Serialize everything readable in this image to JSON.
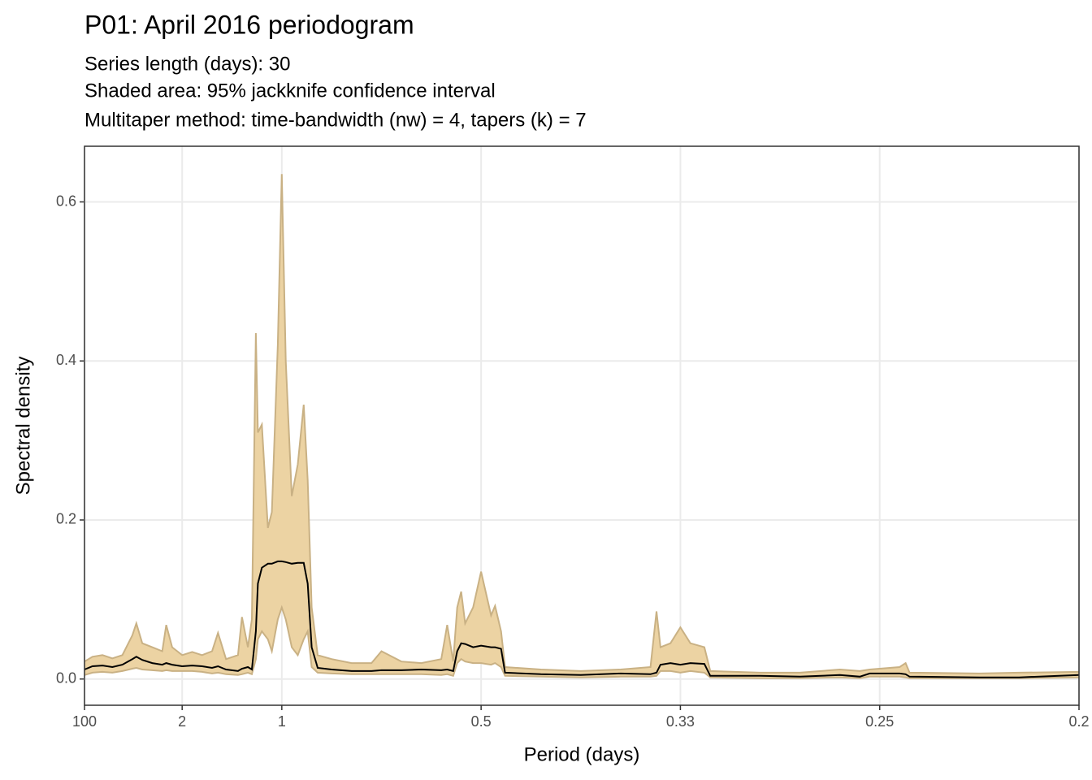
{
  "chart_data": {
    "type": "line",
    "title": "P01: April 2016 periodogram",
    "subtitle": [
      "Series length (days): 30",
      "Shaded area: 95% jackknife confidence interval",
      "Multitaper method: time-bandwidth (nw) = 4, tapers (k) = 7"
    ],
    "xlabel": "Period (days)",
    "ylabel": "Spectral density",
    "xlim": [
      0.01,
      5
    ],
    "ylim": [
      -0.033,
      0.67
    ],
    "xticks": [
      {
        "value": 0.01,
        "label": "100"
      },
      {
        "value": 0.5,
        "label": "2"
      },
      1,
      {
        "value": 2,
        "label": "0.5"
      },
      {
        "value": 3,
        "label": "0.33"
      },
      {
        "value": 4,
        "label": "0.25"
      },
      {
        "value": 5,
        "label": "0.2"
      }
    ],
    "yticks": [
      {
        "value": 0,
        "label": "0.0"
      },
      0.2,
      0.4,
      0.6
    ],
    "grid": true,
    "x": [
      0.01,
      0.05,
      0.1,
      0.15,
      0.2,
      0.25,
      0.27,
      0.3,
      0.35,
      0.4,
      0.42,
      0.45,
      0.5,
      0.55,
      0.6,
      0.65,
      0.68,
      0.72,
      0.78,
      0.8,
      0.83,
      0.85,
      0.87,
      0.88,
      0.9,
      0.93,
      0.95,
      0.98,
      1.0,
      1.02,
      1.05,
      1.08,
      1.11,
      1.13,
      1.15,
      1.18,
      1.25,
      1.35,
      1.45,
      1.5,
      1.6,
      1.7,
      1.8,
      1.83,
      1.86,
      1.88,
      1.9,
      1.92,
      1.96,
      2.0,
      2.05,
      2.07,
      2.1,
      2.12,
      2.3,
      2.5,
      2.7,
      2.85,
      2.88,
      2.9,
      2.95,
      3.0,
      3.05,
      3.12,
      3.15,
      3.4,
      3.6,
      3.8,
      3.9,
      3.95,
      4.1,
      4.13,
      4.15,
      4.5,
      4.7,
      5.0
    ],
    "values": [
      0.012,
      0.016,
      0.017,
      0.015,
      0.018,
      0.025,
      0.028,
      0.024,
      0.02,
      0.018,
      0.02,
      0.018,
      0.016,
      0.017,
      0.016,
      0.014,
      0.016,
      0.012,
      0.01,
      0.013,
      0.015,
      0.012,
      0.06,
      0.12,
      0.14,
      0.145,
      0.145,
      0.148,
      0.148,
      0.147,
      0.145,
      0.146,
      0.146,
      0.12,
      0.04,
      0.014,
      0.012,
      0.01,
      0.01,
      0.011,
      0.011,
      0.012,
      0.011,
      0.012,
      0.01,
      0.035,
      0.045,
      0.044,
      0.04,
      0.042,
      0.04,
      0.04,
      0.038,
      0.008,
      0.006,
      0.005,
      0.007,
      0.006,
      0.008,
      0.018,
      0.02,
      0.018,
      0.02,
      0.019,
      0.004,
      0.004,
      0.003,
      0.005,
      0.003,
      0.007,
      0.007,
      0.006,
      0.003,
      0.002,
      0.002,
      0.005
    ],
    "color": "#000000",
    "band": {
      "color": "#ecd3a3",
      "edge_color": "#c9b184",
      "lower": [
        0.005,
        0.008,
        0.009,
        0.008,
        0.01,
        0.013,
        0.014,
        0.012,
        0.011,
        0.01,
        0.011,
        0.01,
        0.01,
        0.01,
        0.009,
        0.007,
        0.008,
        0.006,
        0.005,
        0.006,
        0.008,
        0.006,
        0.025,
        0.05,
        0.06,
        0.05,
        0.035,
        0.075,
        0.09,
        0.075,
        0.04,
        0.03,
        0.05,
        0.06,
        0.015,
        0.008,
        0.007,
        0.006,
        0.006,
        0.006,
        0.006,
        0.006,
        0.005,
        0.006,
        0.004,
        0.02,
        0.025,
        0.022,
        0.02,
        0.02,
        0.018,
        0.02,
        0.015,
        0.004,
        0.003,
        0.002,
        0.003,
        0.003,
        0.004,
        0.01,
        0.01,
        0.008,
        0.01,
        0.008,
        0.002,
        0.001,
        0.001,
        0.002,
        0.001,
        0.003,
        0.003,
        0.002,
        0.001,
        0.001,
        0.001,
        0.002
      ],
      "upper": [
        0.022,
        0.028,
        0.03,
        0.026,
        0.03,
        0.055,
        0.07,
        0.045,
        0.04,
        0.035,
        0.068,
        0.04,
        0.03,
        0.034,
        0.03,
        0.035,
        0.058,
        0.025,
        0.03,
        0.078,
        0.04,
        0.075,
        0.435,
        0.31,
        0.32,
        0.19,
        0.21,
        0.42,
        0.635,
        0.4,
        0.23,
        0.27,
        0.345,
        0.25,
        0.09,
        0.03,
        0.025,
        0.02,
        0.02,
        0.035,
        0.022,
        0.02,
        0.025,
        0.068,
        0.022,
        0.09,
        0.11,
        0.07,
        0.09,
        0.135,
        0.08,
        0.092,
        0.06,
        0.015,
        0.012,
        0.01,
        0.012,
        0.015,
        0.085,
        0.04,
        0.045,
        0.065,
        0.045,
        0.04,
        0.01,
        0.008,
        0.008,
        0.012,
        0.01,
        0.012,
        0.015,
        0.02,
        0.008,
        0.007,
        0.008,
        0.009
      ]
    }
  }
}
